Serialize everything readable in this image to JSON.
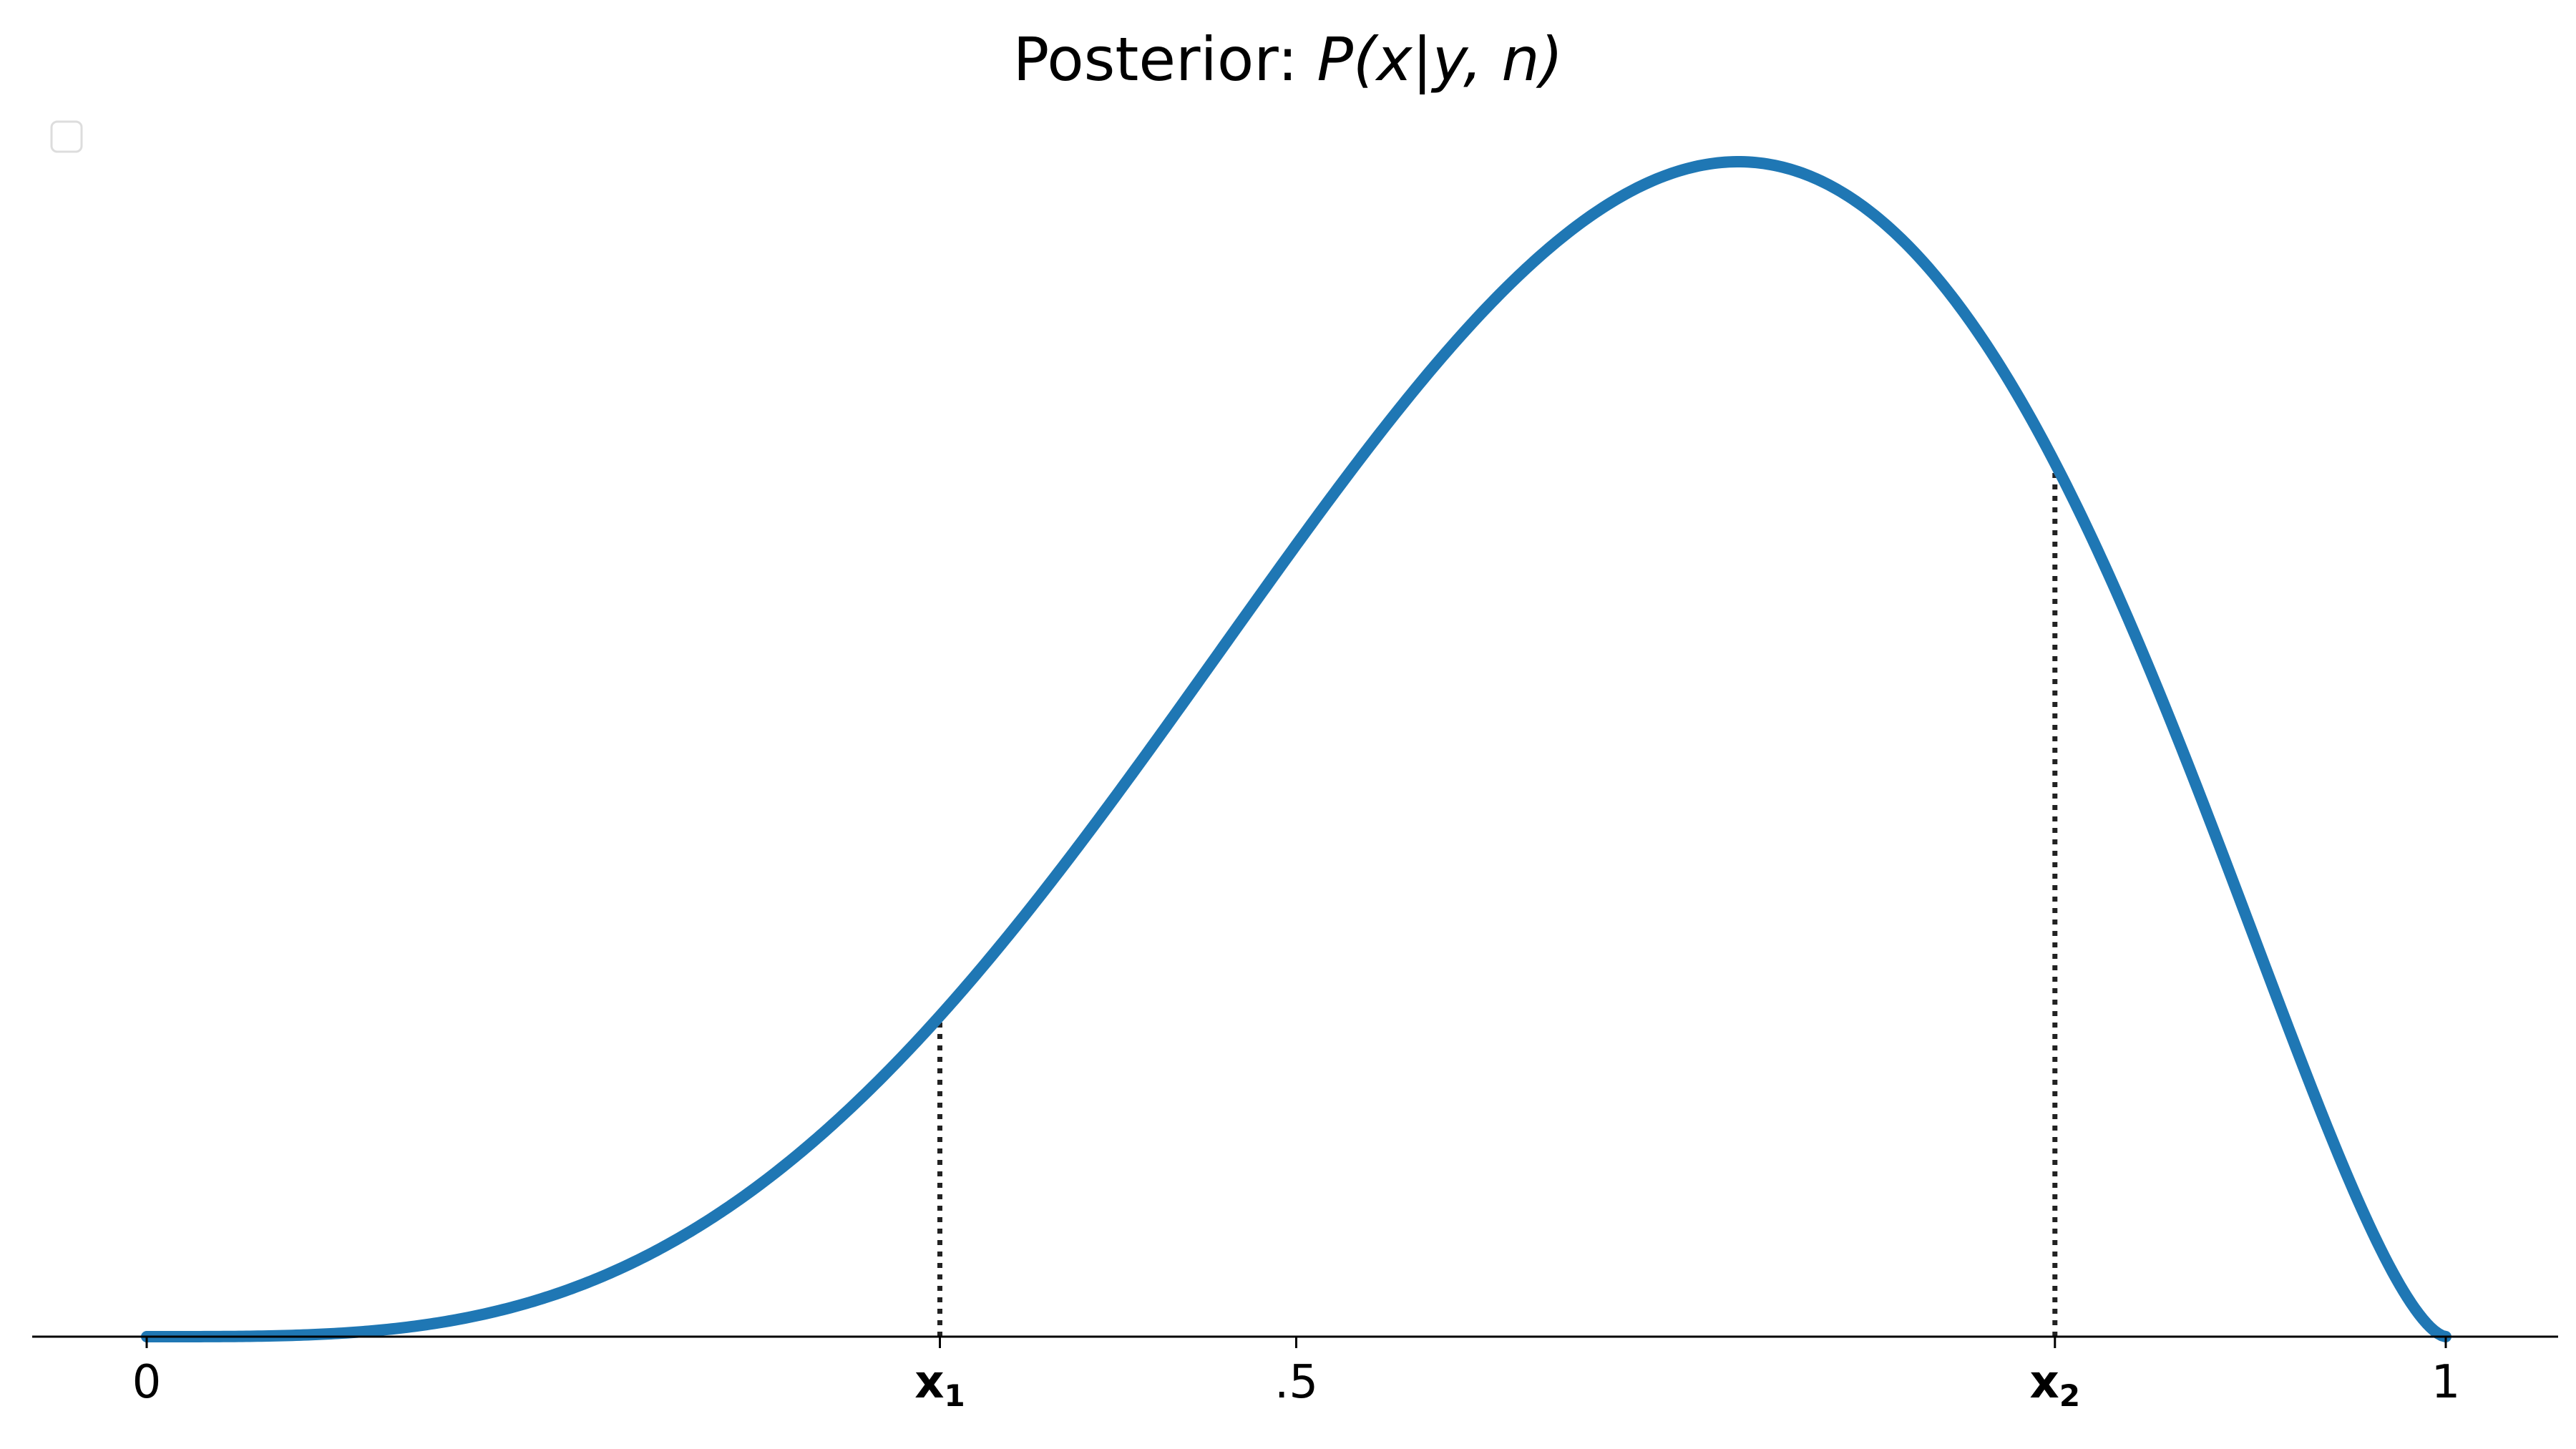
{
  "chart_data": {
    "type": "line",
    "title": "Posterior: ",
    "title_math": "P(x|y, n)",
    "xlabel": "",
    "ylabel": "",
    "xlim": [
      -0.05,
      1.05
    ],
    "ylim": [
      0,
      1.0
    ],
    "grid": false,
    "legend": {
      "placement": "top-left",
      "entries": []
    },
    "series": [
      {
        "color": "#1f77b4",
        "distribution": "beta",
        "alpha": 4.6,
        "beta": 2.6,
        "x_range": [
          0,
          1
        ]
      }
    ],
    "x_ticks": [
      {
        "value": 0,
        "label": "0",
        "bold": false
      },
      {
        "value": 0.345,
        "label": "x",
        "sub": "1",
        "bold": true
      },
      {
        "value": 0.5,
        "label": ".5",
        "bold": false
      },
      {
        "value": 0.83,
        "label": "x",
        "sub": "2",
        "bold": true
      },
      {
        "value": 1,
        "label": "1",
        "bold": false
      }
    ],
    "markers": [
      {
        "x": 0.345,
        "style": "dotted",
        "color": "#222222"
      },
      {
        "x": 0.83,
        "style": "dotted",
        "color": "#222222"
      }
    ],
    "colors": {
      "curve": "#1f77b4",
      "axis": "#000000",
      "marker": "#222222",
      "legend_border": "#dddddd"
    }
  }
}
